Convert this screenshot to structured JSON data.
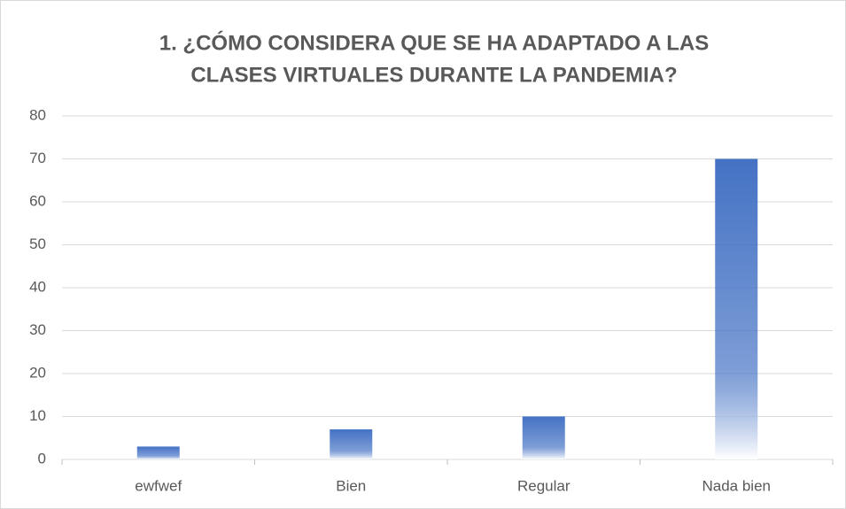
{
  "chart_data": {
    "type": "bar",
    "title": [
      "1.      ¿CÓMO CONSIDERA QUE SE HA ADAPTADO A LAS",
      "CLASES VIRTUALES DURANTE LA PANDEMIA?"
    ],
    "categories": [
      "ewfwef",
      "Bien",
      "Regular",
      "Nada bien"
    ],
    "values": [
      3,
      7,
      10,
      70
    ],
    "color": "#4472c4",
    "ylim": [
      0,
      80
    ],
    "yticks": [
      0,
      10,
      20,
      30,
      40,
      50,
      60,
      70,
      80
    ],
    "grid": true
  }
}
